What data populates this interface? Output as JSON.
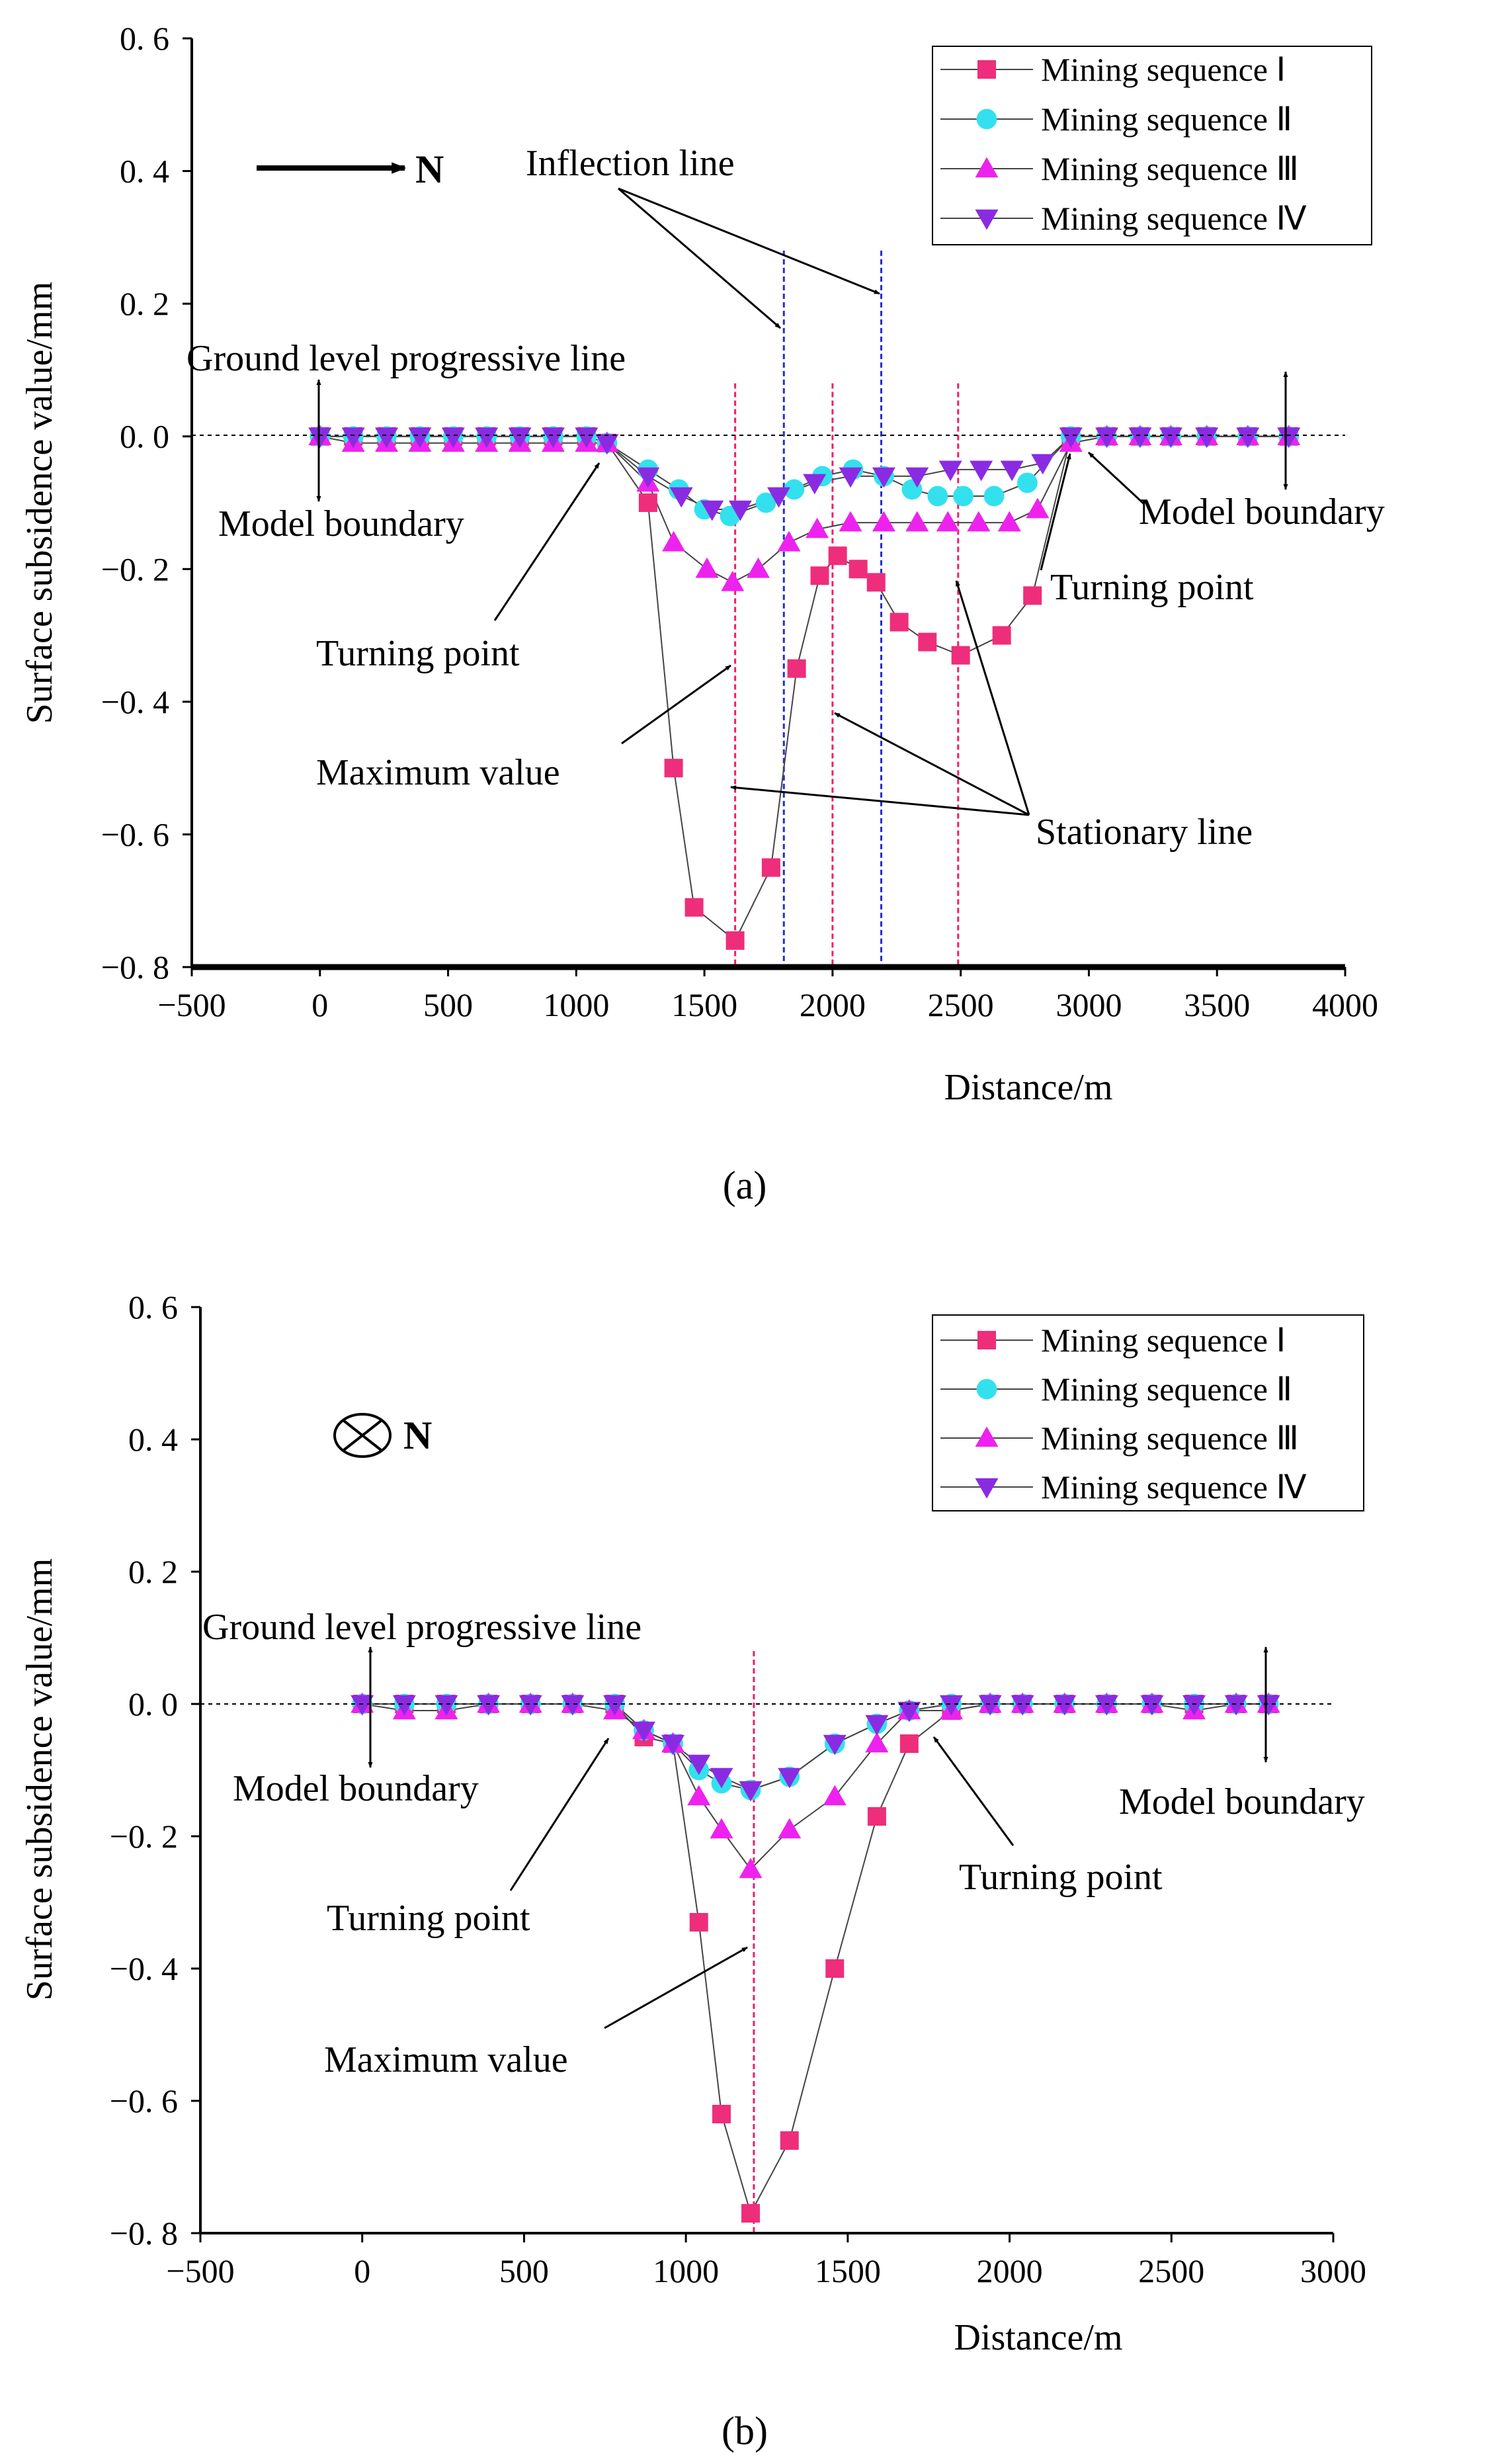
{
  "colors": {
    "seq1": "#ee2e7a",
    "seq2": "#33e1ee",
    "seq3": "#ee22ee",
    "seq4": "#8a2be2",
    "inflection_line": "#1f2fd6",
    "stationary_line": "#ee1f6a"
  },
  "chart_data": [
    {
      "type": "line",
      "panel_label": "(a)",
      "xlabel": "Distance/m",
      "ylabel": "Surface subsidence value/mm",
      "xlim": [
        -500,
        4000
      ],
      "ylim": [
        -0.8,
        0.6
      ],
      "xticks": [
        "−500",
        "0",
        "500",
        "1000",
        "1500",
        "2000",
        "2500",
        "3000",
        "3500",
        "4000"
      ],
      "yticks": [
        "0. 6",
        "0. 4",
        "0. 2",
        "0. 0",
        "−0. 2",
        "−0. 4",
        "−0. 6",
        "−0. 8"
      ],
      "legend": {
        "position": "top-right"
      },
      "north_label": "N",
      "inflection_lines_x": [
        1810,
        2190
      ],
      "stationary_lines_x": [
        1620,
        2000,
        2490
      ],
      "series": [
        {
          "name": "Mining sequence Ⅰ",
          "marker": "square",
          "x": [
            0,
            130,
            260,
            390,
            520,
            650,
            780,
            910,
            1040,
            1120,
            1280,
            1380,
            1460,
            1620,
            1760,
            1860,
            1950,
            2020,
            2100,
            2170,
            2260,
            2370,
            2500,
            2660,
            2780,
            2930,
            3070,
            3200,
            3320,
            3460,
            3620,
            3780
          ],
          "y": [
            0,
            0,
            0,
            0,
            0,
            0,
            0,
            0,
            0,
            -0.01,
            -0.1,
            -0.5,
            -0.71,
            -0.76,
            -0.65,
            -0.35,
            -0.21,
            -0.18,
            -0.2,
            -0.22,
            -0.28,
            -0.31,
            -0.33,
            -0.3,
            -0.24,
            0,
            0,
            0,
            0,
            0,
            0,
            0
          ]
        },
        {
          "name": "Mining sequence Ⅱ",
          "marker": "circle",
          "x": [
            0,
            130,
            260,
            390,
            520,
            650,
            780,
            910,
            1040,
            1120,
            1280,
            1400,
            1500,
            1600,
            1740,
            1850,
            1960,
            2080,
            2200,
            2310,
            2410,
            2510,
            2630,
            2760,
            2930,
            3070,
            3200,
            3320,
            3460,
            3620,
            3780
          ],
          "y": [
            0,
            0,
            0,
            0,
            0,
            0,
            0,
            0,
            0,
            -0.01,
            -0.05,
            -0.08,
            -0.11,
            -0.12,
            -0.1,
            -0.08,
            -0.06,
            -0.05,
            -0.06,
            -0.08,
            -0.09,
            -0.09,
            -0.09,
            -0.07,
            0,
            0,
            0,
            0,
            0,
            0,
            0
          ]
        },
        {
          "name": "Mining sequence Ⅲ",
          "marker": "triangle-up",
          "x": [
            0,
            130,
            260,
            390,
            520,
            650,
            780,
            910,
            1040,
            1120,
            1280,
            1380,
            1510,
            1610,
            1710,
            1830,
            1940,
            2070,
            2200,
            2330,
            2450,
            2570,
            2690,
            2800,
            2930,
            3070,
            3200,
            3320,
            3460,
            3620,
            3780
          ],
          "y": [
            0,
            -0.01,
            -0.01,
            -0.01,
            -0.01,
            -0.01,
            -0.01,
            -0.01,
            -0.01,
            -0.01,
            -0.07,
            -0.16,
            -0.2,
            -0.22,
            -0.2,
            -0.16,
            -0.14,
            -0.13,
            -0.13,
            -0.13,
            -0.13,
            -0.13,
            -0.13,
            -0.11,
            -0.01,
            0,
            0,
            0,
            0,
            0,
            0
          ]
        },
        {
          "name": "Mining sequence Ⅳ",
          "marker": "triangle-down",
          "x": [
            0,
            130,
            260,
            390,
            520,
            650,
            780,
            910,
            1040,
            1120,
            1280,
            1410,
            1530,
            1640,
            1790,
            1930,
            2070,
            2200,
            2330,
            2460,
            2580,
            2700,
            2820,
            2930,
            3070,
            3200,
            3320,
            3460,
            3620,
            3780
          ],
          "y": [
            0,
            0,
            0,
            0,
            0,
            0,
            0,
            0,
            0,
            -0.01,
            -0.06,
            -0.09,
            -0.11,
            -0.11,
            -0.09,
            -0.07,
            -0.06,
            -0.06,
            -0.06,
            -0.05,
            -0.05,
            -0.05,
            -0.04,
            0,
            0,
            0,
            0,
            0,
            0,
            0
          ]
        }
      ],
      "annotations": {
        "inflection": "Inflection line",
        "ground_level": "Ground level progressive line",
        "model_boundary_left": "Model boundary",
        "model_boundary_right": "Model boundary",
        "turning_point_left": "Turning point",
        "turning_point_right": "Turning point",
        "maximum": "Maximum value",
        "stationary": "Stationary line"
      }
    },
    {
      "type": "line",
      "panel_label": "(b)",
      "xlabel": "Distance/m",
      "ylabel": "Surface subsidence value/mm",
      "xlim": [
        -500,
        3000
      ],
      "ylim": [
        -0.8,
        0.6
      ],
      "xticks": [
        "−500",
        "0",
        "500",
        "1000",
        "1500",
        "2000",
        "2500",
        "3000"
      ],
      "yticks": [
        "0. 6",
        "0. 4",
        "0. 2",
        "0. 0",
        "−0. 2",
        "−0. 4",
        "−0. 6",
        "−0. 8"
      ],
      "legend": {
        "position": "top-right"
      },
      "north_label": "N",
      "stationary_lines_x": [
        1210
      ],
      "series": [
        {
          "name": "Mining sequence Ⅰ",
          "marker": "square",
          "x": [
            0,
            130,
            260,
            390,
            520,
            650,
            780,
            870,
            960,
            1040,
            1110,
            1200,
            1320,
            1460,
            1590,
            1690,
            1820,
            1940,
            2040,
            2170,
            2300,
            2440,
            2570,
            2700,
            2800
          ],
          "y": [
            0,
            0,
            0,
            0,
            0,
            0,
            0,
            -0.05,
            -0.06,
            -0.33,
            -0.62,
            -0.77,
            -0.66,
            -0.4,
            -0.17,
            -0.06,
            -0.01,
            0,
            0,
            0,
            0,
            0,
            0,
            0,
            0
          ]
        },
        {
          "name": "Mining sequence Ⅱ",
          "marker": "circle",
          "x": [
            0,
            130,
            260,
            390,
            520,
            650,
            780,
            870,
            960,
            1040,
            1110,
            1200,
            1320,
            1460,
            1590,
            1690,
            1820,
            1940,
            2040,
            2170,
            2300,
            2440,
            2570,
            2700,
            2800
          ],
          "y": [
            0,
            0,
            0,
            0,
            0,
            0,
            0,
            -0.04,
            -0.06,
            -0.1,
            -0.12,
            -0.13,
            -0.11,
            -0.06,
            -0.03,
            -0.01,
            0,
            0,
            0,
            0,
            0,
            0,
            0,
            0,
            0
          ]
        },
        {
          "name": "Mining sequence Ⅲ",
          "marker": "triangle-up",
          "x": [
            0,
            130,
            260,
            390,
            520,
            650,
            780,
            870,
            960,
            1040,
            1110,
            1200,
            1320,
            1460,
            1590,
            1690,
            1820,
            1940,
            2040,
            2170,
            2300,
            2440,
            2570,
            2700,
            2800
          ],
          "y": [
            0,
            -0.01,
            -0.01,
            0,
            0,
            0,
            -0.01,
            -0.04,
            -0.06,
            -0.14,
            -0.19,
            -0.25,
            -0.19,
            -0.14,
            -0.06,
            -0.01,
            -0.01,
            0,
            0,
            0,
            0,
            0,
            -0.01,
            0,
            0
          ]
        },
        {
          "name": "Mining sequence Ⅳ",
          "marker": "triangle-down",
          "x": [
            0,
            130,
            260,
            390,
            520,
            650,
            780,
            870,
            960,
            1040,
            1110,
            1200,
            1320,
            1460,
            1590,
            1690,
            1820,
            1940,
            2040,
            2170,
            2300,
            2440,
            2570,
            2700,
            2800
          ],
          "y": [
            0,
            0,
            0,
            0,
            0,
            0,
            0,
            -0.04,
            -0.06,
            -0.09,
            -0.11,
            -0.13,
            -0.11,
            -0.06,
            -0.03,
            -0.01,
            0,
            0,
            0,
            0,
            0,
            0,
            0,
            0,
            0
          ]
        }
      ],
      "annotations": {
        "ground_level": "Ground level progressive line",
        "model_boundary_left": "Model boundary",
        "model_boundary_right": "Model boundary",
        "turning_point_left": "Turning point",
        "turning_point_right": "Turning point",
        "maximum": "Maximum value"
      }
    }
  ]
}
